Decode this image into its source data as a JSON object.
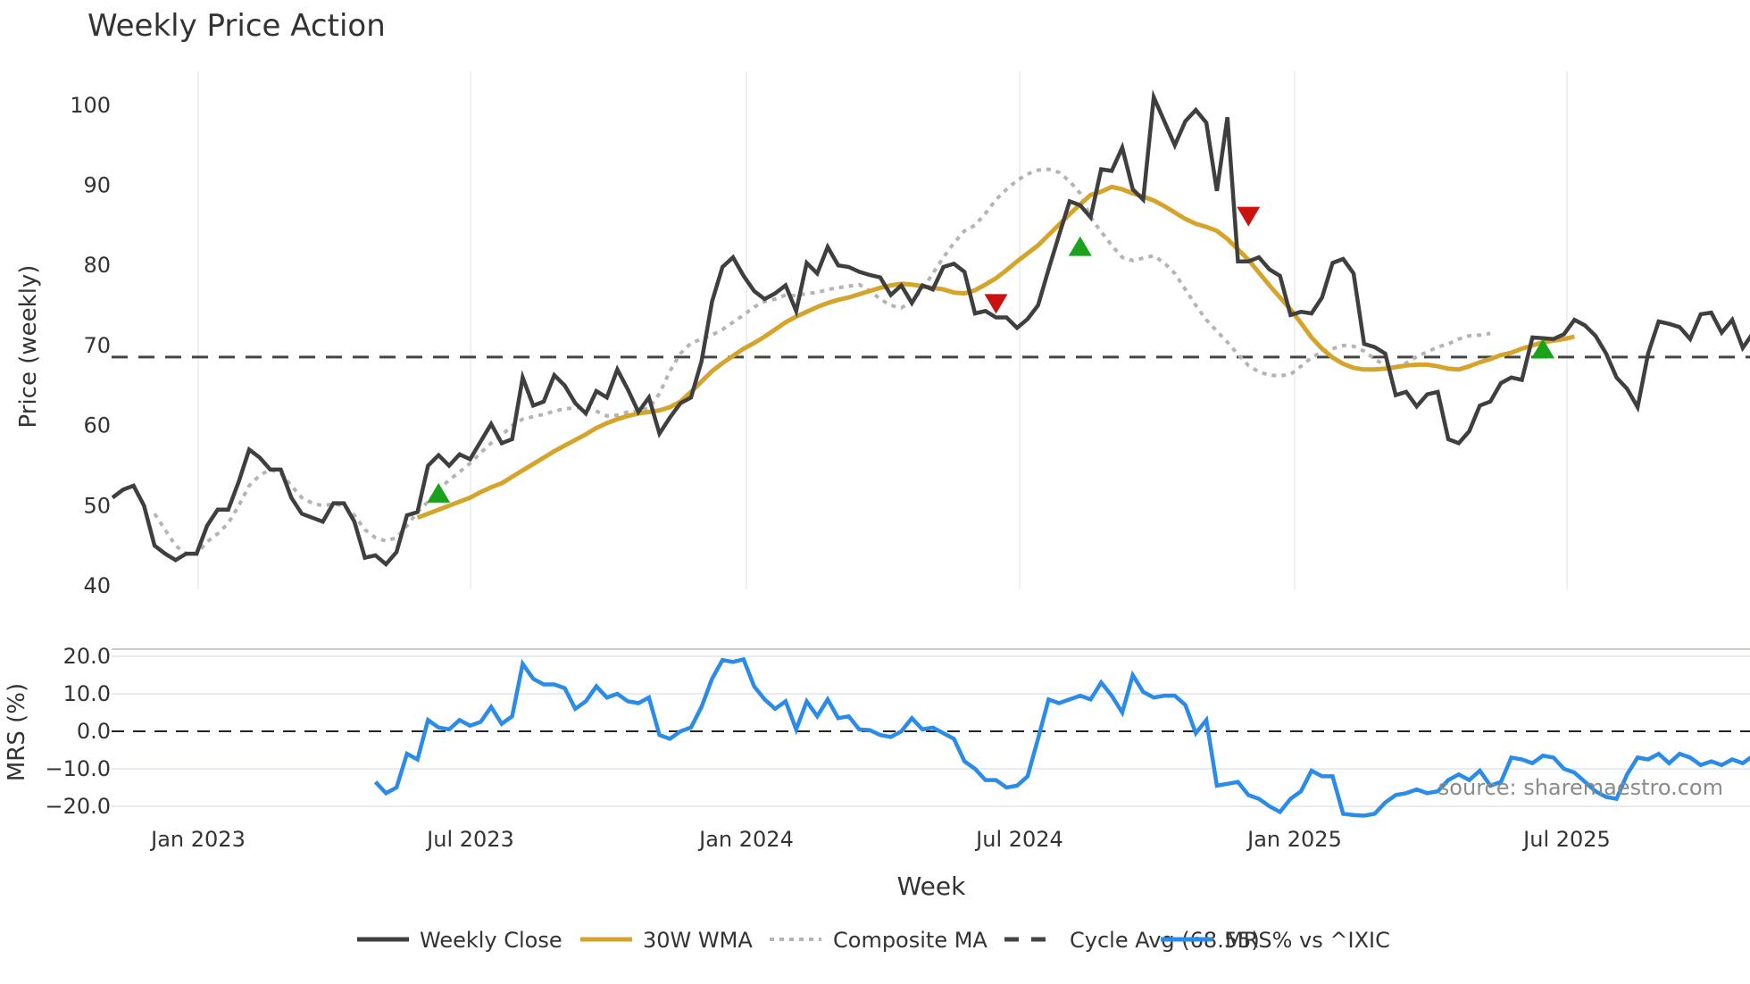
{
  "chart_data": [
    {
      "type": "line",
      "title": "Weekly Price Action",
      "xlabel": "Week",
      "ylabel": "Price (weekly)",
      "ylim": [
        40,
        104
      ],
      "yticks": [
        40,
        50,
        60,
        70,
        80,
        90,
        100
      ],
      "xticks": [
        "Jan 2023",
        "Jul 2023",
        "Jan 2024",
        "Jul 2024",
        "Jan 2025",
        "Jul 2025"
      ],
      "grid": true,
      "legend_position": "bottom",
      "x_start": "2022-11-07",
      "x_step": "1 week",
      "cycle_avg": 68.55,
      "series": [
        {
          "name": "Weekly Close",
          "color": "#3f3f3f",
          "style": "solid",
          "values": [
            51,
            52,
            52.5,
            50,
            45,
            44,
            43.2,
            44,
            44,
            47.5,
            49.5,
            49.5,
            53,
            57,
            56,
            54.5,
            54.5,
            51,
            49,
            48.5,
            48,
            50.3,
            50.3,
            48,
            43.5,
            43.8,
            42.7,
            44.2,
            48.8,
            49.2,
            55,
            56.3,
            55,
            56.4,
            55.8,
            58,
            60.2,
            57.8,
            58.3,
            66,
            62.5,
            63,
            66.3,
            65,
            62.8,
            61.5,
            64.3,
            63.5,
            67,
            64.5,
            61.7,
            63.5,
            59,
            61,
            62.8,
            63.5,
            68,
            75.5,
            79.8,
            81,
            78.7,
            76.8,
            75.8,
            76.5,
            77.5,
            74.3,
            80.3,
            79,
            82.3,
            80,
            79.8,
            79.2,
            78.8,
            78.5,
            76.3,
            77.5,
            75.3,
            77.5,
            77,
            79.8,
            80.2,
            79.2,
            74,
            74.3,
            73.5,
            73.5,
            72.2,
            73.3,
            75,
            79.5,
            83.8,
            88,
            87.5,
            86,
            92,
            91.8,
            94.7,
            89.5,
            88.2,
            101,
            98,
            95,
            98,
            99.4,
            97.8,
            89.3,
            98.5,
            80.5,
            80.5,
            81,
            79.5,
            78.7,
            73.8,
            74.2,
            74,
            76,
            80.3,
            80.8,
            79,
            70.2,
            69.8,
            69,
            63.8,
            64.2,
            62.4,
            63.9,
            64.2,
            58.3,
            57.8,
            59.3,
            62.5,
            63,
            65.3,
            66,
            65.7,
            71,
            70.9,
            70.8,
            71.4,
            73.2,
            72.5,
            71.2,
            69,
            66,
            64.6,
            62.3,
            69,
            73,
            72.7,
            72.3,
            70.8,
            73.9,
            74.1,
            71.6,
            73.2,
            69.7,
            71.6,
            74.3,
            73.3
          ]
        },
        {
          "name": "30W WMA",
          "color": "#d4a52a",
          "style": "solid",
          "values": [
            null,
            null,
            null,
            null,
            null,
            null,
            null,
            null,
            null,
            null,
            null,
            null,
            null,
            null,
            null,
            null,
            null,
            null,
            null,
            null,
            null,
            null,
            null,
            null,
            null,
            null,
            null,
            null,
            null,
            48.5,
            49,
            49.5,
            50,
            50.5,
            51,
            51.7,
            52.3,
            52.8,
            53.6,
            54.4,
            55.2,
            56,
            56.8,
            57.5,
            58.2,
            58.9,
            59.7,
            60.3,
            60.8,
            61.2,
            61.5,
            61.7,
            61.9,
            62.3,
            63,
            64.2,
            65.5,
            66.8,
            67.8,
            68.7,
            69.6,
            70.3,
            71.1,
            72,
            72.9,
            73.6,
            74.2,
            74.8,
            75.3,
            75.7,
            76,
            76.4,
            76.8,
            77.2,
            77.5,
            77.7,
            77.6,
            77.4,
            77.2,
            77,
            76.6,
            76.5,
            76.9,
            77.6,
            78.4,
            79.4,
            80.5,
            81.5,
            82.5,
            83.8,
            85.1,
            86.4,
            87.6,
            88.8,
            89.2,
            89.8,
            89.5,
            89,
            88.6,
            88.1,
            87.4,
            86.6,
            85.8,
            85.2,
            84.8,
            84.3,
            83.3,
            82,
            80.7,
            79.1,
            77.5,
            76,
            74.5,
            72.8,
            71,
            69.6,
            68.5,
            67.7,
            67.2,
            67,
            67,
            67.1,
            67.3,
            67.5,
            67.6,
            67.6,
            67.4,
            67.1,
            67,
            67.4,
            67.9,
            68.3,
            68.8,
            69.1,
            69.6,
            70,
            70.4,
            70.6,
            70.8,
            71.1
          ]
        },
        {
          "name": "Composite MA",
          "color": "#b4b4b4",
          "style": "dotted",
          "values": [
            null,
            null,
            null,
            null,
            49,
            47,
            45,
            44,
            44,
            45.5,
            46.5,
            47.8,
            50,
            52.5,
            53.8,
            54.5,
            54,
            52.5,
            51,
            50.3,
            50,
            50.2,
            50,
            48.8,
            47,
            46,
            45.6,
            46,
            47.5,
            49.2,
            50.5,
            52,
            53.2,
            54.2,
            55.3,
            56.6,
            57.8,
            58.8,
            60,
            60.8,
            61.1,
            61.4,
            61.8,
            62.1,
            62.2,
            62.3,
            61.8,
            61.2,
            61.3,
            61.7,
            61.8,
            62.2,
            64,
            66.8,
            69,
            70.3,
            70.8,
            71.3,
            72,
            72.9,
            73.8,
            74.8,
            75.5,
            75.8,
            76.3,
            76.2,
            76.5,
            76.6,
            77,
            77.2,
            77.4,
            77.6,
            76.8,
            75.8,
            75,
            74.7,
            75.5,
            77,
            79,
            81,
            82.8,
            84.3,
            85,
            86.5,
            88.2,
            89.5,
            90.6,
            91.4,
            91.9,
            92,
            91.6,
            90.5,
            89,
            86,
            84.2,
            82.5,
            81,
            80.6,
            80.9,
            81.2,
            80.3,
            79,
            77,
            75,
            73.2,
            71.8,
            70.4,
            68.9,
            67.5,
            66.7,
            66.3,
            66.2,
            66.4,
            67.4,
            68.5,
            69.2,
            69.6,
            70,
            69.9,
            69.3,
            68.3,
            67.5,
            67.3,
            67.8,
            68.6,
            69.2,
            69.8,
            70.2,
            70.8,
            71.2,
            71.3,
            71.5
          ]
        },
        {
          "name": "Cycle Avg (68.55)",
          "color": "#444444",
          "style": "dashed",
          "values": [
            68.55
          ]
        },
        {
          "name": "MRS% vs ^IXIC",
          "color": "#2a8be8",
          "style": "solid",
          "panel": "MRS (%)"
        }
      ],
      "markers": [
        {
          "type": "buy",
          "color": "#1aa31a",
          "x_week": 31,
          "y": 51.5
        },
        {
          "type": "sell",
          "color": "#cc1111",
          "x_week": 84,
          "y": 75.3
        },
        {
          "type": "buy",
          "color": "#1aa31a",
          "x_week": 92,
          "y": 82.3
        },
        {
          "type": "sell",
          "color": "#cc1111",
          "x_week": 108,
          "y": 86.2
        },
        {
          "type": "buy",
          "color": "#1aa31a",
          "x_week": 136,
          "y": 69.5
        }
      ]
    },
    {
      "type": "line",
      "title": "",
      "ylabel": "MRS (%)",
      "ylim": [
        -24,
        22
      ],
      "yticks": [
        "20.0",
        "10.0",
        "0.0",
        "−10.0",
        "−20.0"
      ],
      "zero_line": "dashed",
      "series": [
        {
          "name": "MRS% vs ^IXIC",
          "color": "#2a8be8",
          "start_week": 25,
          "values": [
            -13.5,
            -16.5,
            -15,
            -6,
            -7.5,
            3,
            1,
            0.5,
            3,
            1.5,
            2.5,
            6.5,
            2,
            4,
            18,
            14,
            12.5,
            12.5,
            11.5,
            6,
            8,
            12,
            9,
            10,
            8,
            7.5,
            9,
            -1,
            -2,
            0,
            1,
            6.5,
            14,
            19,
            18.5,
            19.2,
            12,
            8.5,
            6,
            8,
            0.5,
            8,
            4,
            8.5,
            3.5,
            4,
            0.5,
            0.3,
            -1,
            -1.5,
            0,
            3.5,
            0.5,
            1,
            -0.5,
            -2,
            -8,
            -10,
            -13,
            -13,
            -15,
            -14.5,
            -12,
            -2,
            8.5,
            7.5,
            8.5,
            9.5,
            8.5,
            13,
            9.5,
            5,
            15,
            10.5,
            9,
            9.5,
            9.5,
            7,
            -0.5,
            3,
            -14.5,
            -14,
            -13.5,
            -17,
            -18,
            -20,
            -21.5,
            -18,
            -16,
            -10.5,
            -12,
            -12,
            -22,
            -22.3,
            -22.5,
            -22,
            -19,
            -17,
            -16.5,
            -15.5,
            -16.5,
            -16,
            -13,
            -11.5,
            -13,
            -10.5,
            -14.5,
            -13.5,
            -7,
            -7.5,
            -8.5,
            -6.5,
            -7,
            -10,
            -11,
            -13.5,
            -16,
            -17.5,
            -18,
            -11.5,
            -7,
            -7.5,
            -6,
            -8.5,
            -6,
            -7,
            -9,
            -8,
            -9,
            -7.5,
            -8.5,
            -6.5,
            -9.5
          ]
        }
      ]
    }
  ],
  "title": "Weekly Price Action",
  "axes": {
    "price_ylabel": "Price (weekly)",
    "mrs_ylabel": "MRS (%)",
    "xlabel": "Week",
    "price_ticks": [
      "100",
      "90",
      "80",
      "70",
      "60",
      "50",
      "40"
    ],
    "mrs_ticks": [
      "20.0",
      "10.0",
      "0.0",
      "−10.0",
      "−20.0"
    ],
    "x_ticks": [
      "Jan 2023",
      "Jul 2023",
      "Jan 2024",
      "Jul 2024",
      "Jan 2025",
      "Jul 2025"
    ]
  },
  "legend": {
    "items": [
      {
        "label": "Weekly Close",
        "color": "#3f3f3f",
        "style": "solid"
      },
      {
        "label": "30W WMA",
        "color": "#d4a52a",
        "style": "solid"
      },
      {
        "label": "Composite MA",
        "color": "#b4b4b4",
        "style": "dotted"
      },
      {
        "label": "Cycle Avg (68.55)",
        "color": "#444444",
        "style": "dashed"
      },
      {
        "label": "MRS% vs ^IXIC",
        "color": "#2a8be8",
        "style": "solid"
      }
    ]
  },
  "watermark": "source: sharemaestro.com"
}
